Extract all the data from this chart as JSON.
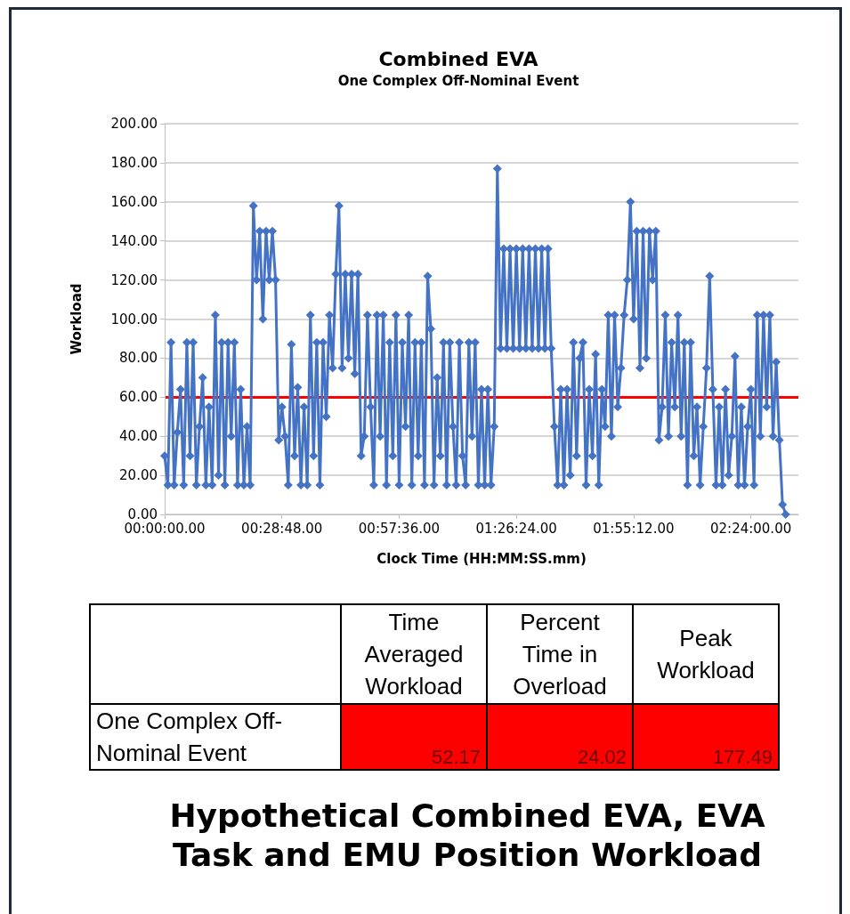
{
  "chart_data": {
    "type": "line",
    "title": "Combined EVA",
    "subtitle": "One Complex Off-Nominal Event",
    "xlabel": "Clock Time (HH:MM:SS.mm)",
    "ylabel": "Workload",
    "categories": [
      "00:00:00.00",
      null,
      null,
      null,
      null,
      null,
      null,
      null,
      null,
      null,
      null,
      null,
      null,
      null,
      null,
      null,
      null,
      null,
      null,
      null,
      null,
      null,
      null,
      null,
      null,
      null,
      null,
      null,
      null,
      null,
      null,
      null,
      null,
      null,
      null,
      null,
      null,
      "00:28:48.00",
      null,
      null,
      null,
      null,
      null,
      null,
      null,
      null,
      null,
      null,
      null,
      null,
      null,
      null,
      null,
      null,
      null,
      null,
      null,
      null,
      null,
      null,
      null,
      null,
      null,
      null,
      null,
      null,
      null,
      null,
      null,
      null,
      null,
      null,
      null,
      null,
      "00:57:36.00",
      null,
      null,
      null,
      null,
      null,
      null,
      null,
      null,
      null,
      null,
      null,
      null,
      null,
      null,
      null,
      null,
      null,
      null,
      null,
      null,
      null,
      null,
      null,
      null,
      null,
      null,
      null,
      null,
      null,
      null,
      null,
      null,
      null,
      null,
      null,
      null,
      "01:26:24.00",
      null,
      null,
      null,
      null,
      null,
      null,
      null,
      null,
      null,
      null,
      null,
      null,
      null,
      null,
      null,
      null,
      null,
      null,
      null,
      null,
      null,
      null,
      null,
      null,
      null,
      null,
      null,
      null,
      null,
      null,
      null,
      null,
      null,
      null,
      null,
      null,
      "01:55:12.00",
      null,
      null,
      null,
      null,
      null,
      null,
      null,
      null,
      null,
      null,
      null,
      null,
      null,
      null,
      null,
      null,
      null,
      null,
      null,
      null,
      null,
      null,
      null,
      null,
      null,
      null,
      null,
      null,
      null,
      null,
      null,
      null,
      null,
      null,
      null,
      null,
      "02:24:00.00",
      null,
      null,
      null,
      null,
      null,
      null,
      null,
      null,
      null,
      null,
      null,
      null,
      null,
      null,
      null
    ],
    "ylim": [
      0,
      200
    ],
    "yticks": [
      {
        "value": 0,
        "label": "0.00"
      },
      {
        "value": 20,
        "label": "20.00"
      },
      {
        "value": 40,
        "label": "40.00"
      },
      {
        "value": 60,
        "label": "60.00"
      },
      {
        "value": 80,
        "label": "80.00"
      },
      {
        "value": 100,
        "label": "100.00"
      },
      {
        "value": 120,
        "label": "120.00"
      },
      {
        "value": 140,
        "label": "140.00"
      },
      {
        "value": 160,
        "label": "160.00"
      },
      {
        "value": 180,
        "label": "180.00"
      },
      {
        "value": 200,
        "label": "200.00"
      }
    ],
    "grid": "y",
    "marker": "diamond",
    "line_style": "solid",
    "series": [
      {
        "color": "#4472c4",
        "values": [
          30,
          15,
          88,
          15,
          42,
          64,
          15,
          88,
          30,
          88,
          15,
          45,
          70,
          15,
          55,
          15,
          102,
          20,
          88,
          15,
          88,
          40,
          88,
          15,
          64,
          15,
          45,
          15,
          158,
          120,
          145,
          100,
          145,
          120,
          145,
          120,
          38,
          55,
          40,
          15,
          87,
          30,
          65,
          15,
          55,
          15,
          102,
          30,
          88,
          15,
          88,
          50,
          102,
          75,
          123,
          158,
          75,
          123,
          80,
          123,
          72,
          123,
          30,
          40,
          102,
          55,
          15,
          102,
          40,
          102,
          15,
          88,
          30,
          102,
          15,
          88,
          45,
          102,
          15,
          88,
          30,
          88,
          15,
          122,
          95,
          15,
          70,
          30,
          88,
          15,
          88,
          45,
          15,
          88,
          30,
          15,
          88,
          40,
          88,
          15,
          64,
          15,
          64,
          15,
          45,
          177,
          85,
          136,
          85,
          136,
          85,
          136,
          85,
          136,
          85,
          136,
          85,
          136,
          85,
          136,
          85,
          136,
          85,
          45,
          15,
          64,
          15,
          64,
          20,
          88,
          30,
          80,
          88,
          15,
          64,
          30,
          82,
          15,
          64,
          45,
          102,
          40,
          102,
          55,
          75,
          102,
          120,
          160,
          100,
          145,
          75,
          145,
          80,
          145,
          120,
          145,
          38,
          55,
          102,
          40,
          88,
          55,
          102,
          40,
          88,
          15,
          88,
          30,
          55,
          15,
          45,
          75,
          122,
          64,
          15,
          55,
          15,
          64,
          20,
          40,
          81,
          15,
          55,
          15,
          45,
          64,
          15,
          102,
          40,
          102,
          55,
          102,
          40,
          78,
          38,
          5,
          0,
          null,
          null,
          null,
          null
        ]
      }
    ],
    "ref_lines": [
      {
        "axis": "y",
        "value": 60,
        "color": "#ff0000",
        "line_style": "solid"
      }
    ],
    "annotations": [
      "Time Averaged Workload",
      "Percent Time in Overload",
      "Peak Workload",
      "One Complex Off-Nominal Event",
      "52.17",
      "24.02",
      "177.49",
      "Hypothetical Combined EVA, EVA Task and EMU Position Workload"
    ]
  }
}
